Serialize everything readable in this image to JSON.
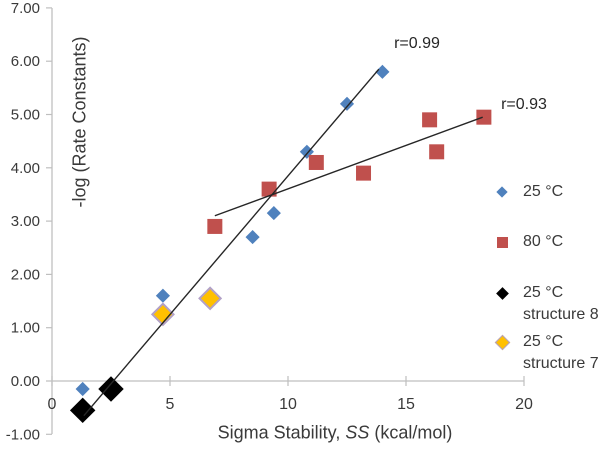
{
  "chart_data": {
    "type": "scatter",
    "title": "",
    "xlabel_parts": [
      "Sigma Stability, ",
      "SS",
      " (kcal/mol)"
    ],
    "ylabel": "-log (Rate Constants)",
    "xlim": [
      0,
      20
    ],
    "ylim": [
      -1,
      7
    ],
    "grid": false,
    "legend_position": "right",
    "axis_color": "#BFBFBF",
    "trendline_color": "#262626",
    "x_ticks": [
      "0",
      "5",
      "10",
      "15",
      "20"
    ],
    "y_ticks": [
      "7.00",
      "6.00",
      "5.00",
      "4.00",
      "3.00",
      "2.00",
      "1.00",
      "0.00",
      "-1.00"
    ],
    "series": [
      {
        "id": "25C",
        "name": "25 °C",
        "marker": "diamond",
        "color": "#4F81BD",
        "size": 10,
        "points": [
          [
            1.3,
            -0.15
          ],
          [
            4.7,
            1.6
          ],
          [
            8.5,
            2.7
          ],
          [
            9.4,
            3.15
          ],
          [
            10.8,
            4.3
          ],
          [
            12.5,
            5.2
          ],
          [
            14.0,
            5.8
          ]
        ]
      },
      {
        "id": "80C",
        "name": "80 °C",
        "marker": "square",
        "color": "#C0504D",
        "size": 15,
        "points": [
          [
            6.9,
            2.9
          ],
          [
            9.2,
            3.6
          ],
          [
            11.2,
            4.1
          ],
          [
            13.2,
            3.9
          ],
          [
            16.0,
            4.9
          ],
          [
            16.3,
            4.3
          ],
          [
            18.3,
            4.95
          ]
        ]
      },
      {
        "id": "25C-structure8",
        "name": "25 °C structure 8",
        "marker": "diamond",
        "color": "#000000",
        "size": 18,
        "points": [
          [
            1.3,
            -0.55
          ],
          [
            2.5,
            -0.15
          ]
        ]
      },
      {
        "id": "25C-structure7",
        "name": "25 °C structure 7",
        "marker": "diamond",
        "color": "#FFC000",
        "stroke": "#B2A1C7",
        "size": 15,
        "points": [
          [
            4.7,
            1.25
          ],
          [
            6.7,
            1.55
          ]
        ]
      }
    ],
    "trendlines": [
      {
        "label": "r=0.99",
        "x1": 1.35,
        "y1": -0.65,
        "x2": 13.85,
        "y2": 5.85
      },
      {
        "label": "r=0.93",
        "x1": 6.9,
        "y1": 3.1,
        "x2": 18.25,
        "y2": 4.95
      }
    ],
    "annotations": [
      {
        "text": "r=0.99"
      },
      {
        "text": "r=0.93"
      }
    ]
  },
  "legend": {
    "items": [
      {
        "label": "25 °C",
        "sublabel": "",
        "marker": "diamond",
        "color": "#4F81BD",
        "stroke": ""
      },
      {
        "label": "80 °C",
        "sublabel": "",
        "marker": "square",
        "color": "#C0504D",
        "stroke": ""
      },
      {
        "label": "25 °C",
        "sublabel": "structure 8",
        "marker": "diamond",
        "color": "#000000",
        "stroke": ""
      },
      {
        "label": "25 °C",
        "sublabel": "structure 7",
        "marker": "diamond",
        "color": "#FFC000",
        "stroke": "#B2A1C7"
      }
    ]
  }
}
